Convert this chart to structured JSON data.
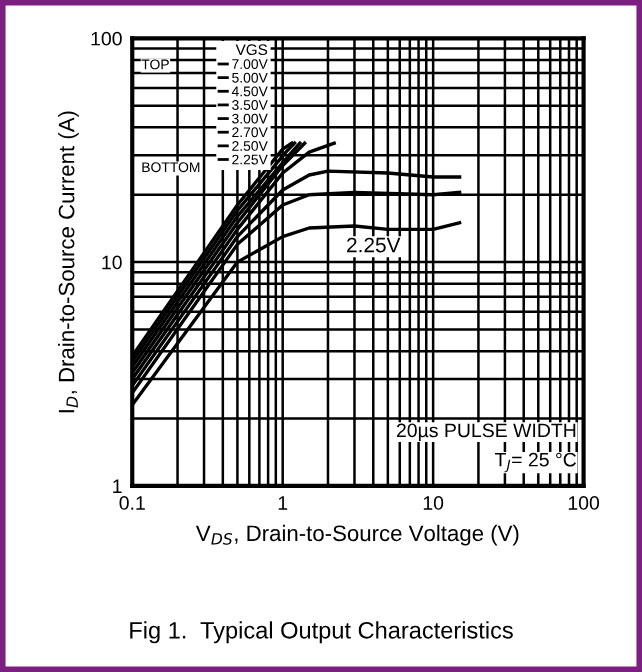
{
  "chart_data": {
    "type": "line",
    "title": "Fig 1.  Typical Output Characteristics",
    "xlabel": "V$_{DS}$, Drain-to-Source Voltage (V)",
    "ylabel": "I$_{D}$, Drain-to-Source Current (A)",
    "legend_title": "VGS",
    "legend": "top left",
    "log": "xy",
    "grid": true,
    "marker": "none",
    "line_style": "solid",
    "xlim": [
      0.1,
      100
    ],
    "ylim": [
      1,
      100
    ],
    "xticks": [
      0.1,
      1,
      10,
      100
    ],
    "yticks": [
      1,
      10,
      100
    ],
    "series": [
      {
        "name": "7.00V",
        "color": "#000000",
        "x": [
          0.1,
          0.5,
          1.0,
          1.15
        ],
        "values": [
          3.8,
          18,
          32,
          34
        ]
      },
      {
        "name": "5.00V",
        "color": "#000000",
        "x": [
          0.1,
          0.5,
          1.05,
          1.2
        ],
        "values": [
          3.6,
          17,
          31,
          34
        ]
      },
      {
        "name": "4.50V",
        "color": "#000000",
        "x": [
          0.1,
          0.5,
          1.1,
          1.3
        ],
        "values": [
          3.4,
          16,
          30,
          34
        ]
      },
      {
        "name": "3.50V",
        "color": "#000000",
        "x": [
          0.1,
          0.5,
          1.0,
          1.4
        ],
        "values": [
          3.2,
          15,
          27,
          34
        ]
      },
      {
        "name": "3.00V",
        "color": "#000000",
        "x": [
          0.1,
          0.5,
          1.0,
          1.5,
          2.2
        ],
        "values": [
          3.0,
          14,
          25,
          31,
          34
        ]
      },
      {
        "name": "2.70V",
        "color": "#000000",
        "x": [
          0.1,
          0.5,
          1.0,
          1.5,
          2,
          5,
          10,
          15
        ],
        "values": [
          2.8,
          13,
          21,
          24.5,
          25.5,
          25,
          24,
          24
        ]
      },
      {
        "name": "2.50V",
        "color": "#000000",
        "x": [
          0.1,
          0.5,
          1.0,
          1.5,
          3,
          10,
          15
        ],
        "values": [
          2.6,
          12,
          18,
          20,
          20.5,
          20,
          20.5
        ]
      },
      {
        "name": "2.25V",
        "color": "#000000",
        "x": [
          0.1,
          0.5,
          1.0,
          1.5,
          3,
          5,
          10,
          15
        ],
        "values": [
          2.3,
          10,
          13,
          14.2,
          14.5,
          14,
          14,
          15
        ]
      }
    ],
    "annotations": [
      {
        "text": "2.25V",
        "x": 4,
        "y": 14.5
      },
      "TOP",
      "BOTTOM",
      "20µs PULSE WIDTH",
      "T$_{J}$= 25 °C"
    ]
  }
}
